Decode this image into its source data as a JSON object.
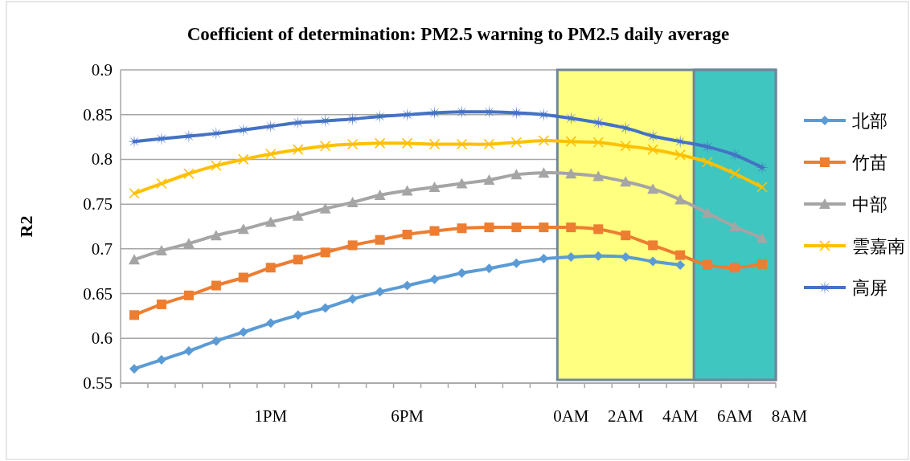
{
  "chart_data": {
    "type": "line",
    "title": "Coefficient of determination: PM2.5 warning to PM2.5 daily average",
    "ylabel": "R2",
    "categories": [
      null,
      null,
      null,
      null,
      null,
      "1PM",
      null,
      null,
      null,
      null,
      "6PM",
      null,
      null,
      null,
      null,
      null,
      "0AM",
      null,
      "2AM",
      null,
      "4AM",
      null,
      "6AM",
      null
    ],
    "annotations": [
      "8AM"
    ],
    "ylim": [
      0.55,
      0.9
    ],
    "yticks": [
      0.55,
      0.6,
      0.65,
      0.7,
      0.75,
      0.8,
      0.85,
      0.9
    ],
    "grid": "y",
    "legend": "right",
    "line_style": "solid",
    "series": [
      {
        "name": "北部",
        "color": "#5b9bd5",
        "marker": "diamond",
        "values": [
          0.566,
          0.576,
          0.586,
          0.597,
          0.607,
          0.617,
          0.626,
          0.634,
          0.644,
          0.652,
          0.659,
          0.666,
          0.673,
          0.678,
          0.684,
          0.689,
          0.691,
          0.692,
          0.691,
          0.686,
          0.682,
          null,
          null,
          null
        ]
      },
      {
        "name": "竹苗",
        "color": "#ed7d31",
        "marker": "square",
        "values": [
          0.626,
          0.638,
          0.648,
          0.659,
          0.668,
          0.679,
          0.688,
          0.696,
          0.704,
          0.71,
          0.716,
          0.72,
          0.723,
          0.724,
          0.724,
          0.724,
          0.724,
          0.722,
          0.715,
          0.704,
          0.693,
          0.682,
          0.679,
          0.683
        ]
      },
      {
        "name": "中部",
        "color": "#a5a5a5",
        "marker": "triangle",
        "values": [
          0.688,
          0.698,
          0.706,
          0.715,
          0.722,
          0.73,
          0.737,
          0.745,
          0.752,
          0.76,
          0.765,
          0.769,
          0.773,
          0.777,
          0.783,
          0.785,
          0.784,
          0.781,
          0.775,
          0.767,
          0.755,
          0.74,
          0.725,
          0.712
        ]
      },
      {
        "name": "雲嘉南",
        "color": "#ffc000",
        "marker": "cross",
        "values": [
          0.762,
          0.773,
          0.784,
          0.793,
          0.8,
          0.806,
          0.811,
          0.815,
          0.817,
          0.818,
          0.818,
          0.817,
          0.817,
          0.817,
          0.819,
          0.821,
          0.82,
          0.819,
          0.815,
          0.811,
          0.805,
          0.797,
          0.784,
          0.769
        ]
      },
      {
        "name": "高屏",
        "color": "#4472c4",
        "marker": "star",
        "values": [
          0.82,
          0.823,
          0.826,
          0.829,
          0.833,
          0.837,
          0.841,
          0.843,
          0.845,
          0.848,
          0.85,
          0.852,
          0.853,
          0.853,
          0.852,
          0.85,
          0.846,
          0.841,
          0.835,
          0.826,
          0.82,
          0.814,
          0.805,
          0.791
        ]
      }
    ]
  }
}
